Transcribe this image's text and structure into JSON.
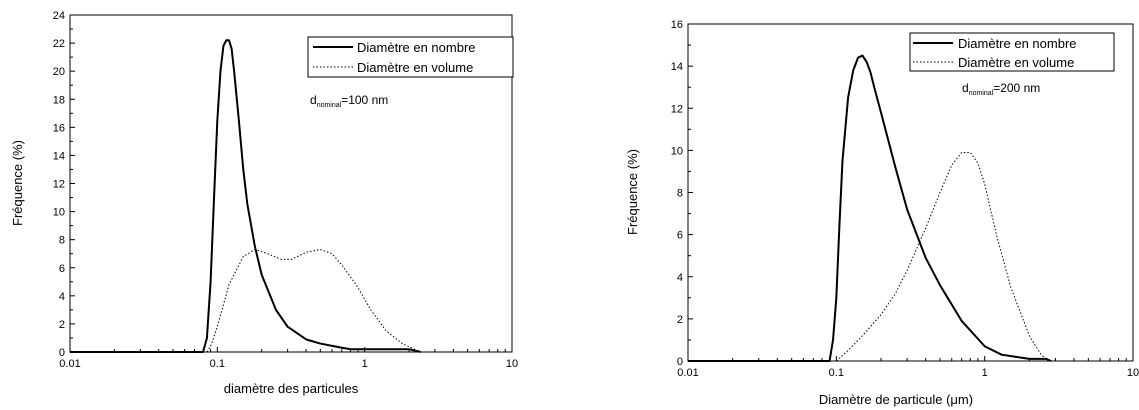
{
  "chart_data": [
    {
      "type": "line",
      "xscale": "log",
      "xlim": [
        0.01,
        10
      ],
      "ylim": [
        0,
        24
      ],
      "xticks": [
        "0.01",
        "0.1",
        "1",
        "10"
      ],
      "yticks": [
        "0",
        "2",
        "4",
        "6",
        "8",
        "10",
        "12",
        "14",
        "16",
        "18",
        "20",
        "22",
        "24"
      ],
      "xlabel": "diamètre des particules",
      "ylabel": "Fréquence (%)",
      "legend_position": "top-right",
      "annotation": {
        "prefix": "d",
        "subscript": "nominal",
        "suffix": "=100 nm"
      },
      "series": [
        {
          "name": "Diamètre en nombre",
          "style": "solid",
          "x": [
            0.01,
            0.08,
            0.085,
            0.09,
            0.095,
            0.1,
            0.105,
            0.11,
            0.115,
            0.12,
            0.125,
            0.13,
            0.14,
            0.15,
            0.16,
            0.18,
            0.2,
            0.25,
            0.3,
            0.4,
            0.5,
            0.7,
            0.8,
            1.0,
            1.5,
            2.0,
            2.4
          ],
          "y": [
            0,
            0,
            1.0,
            5.0,
            11.0,
            16.5,
            20.0,
            21.8,
            22.2,
            22.2,
            21.6,
            20.0,
            16.5,
            13.0,
            10.5,
            7.5,
            5.5,
            3.0,
            1.8,
            0.9,
            0.6,
            0.3,
            0.2,
            0.2,
            0.2,
            0.2,
            0
          ]
        },
        {
          "name": "Diamètre en volume",
          "style": "dotted",
          "x": [
            0.085,
            0.09,
            0.1,
            0.12,
            0.15,
            0.18,
            0.22,
            0.27,
            0.32,
            0.4,
            0.5,
            0.6,
            0.7,
            0.9,
            1.1,
            1.4,
            1.8,
            2.4
          ],
          "y": [
            0,
            0.4,
            1.8,
            4.8,
            6.8,
            7.3,
            7.0,
            6.6,
            6.6,
            7.1,
            7.3,
            7.0,
            6.2,
            4.6,
            3.0,
            1.5,
            0.6,
            0
          ]
        }
      ]
    },
    {
      "type": "line",
      "xscale": "log",
      "xlim": [
        0.01,
        10
      ],
      "ylim": [
        0,
        16
      ],
      "xticks": [
        "0.01",
        "0.1",
        "1",
        "10"
      ],
      "yticks": [
        "0",
        "2",
        "4",
        "6",
        "8",
        "10",
        "12",
        "14",
        "16"
      ],
      "xlabel": "Diamètre de particule (",
      "xlabel_symbol": "μ",
      "xlabel_suffix": "m)",
      "ylabel": "Fréquence (%)",
      "legend_position": "top-right",
      "annotation": {
        "prefix": "d",
        "subscript": "nominal",
        "suffix": "=200 nm"
      },
      "series": [
        {
          "name": "Diamètre en nombre",
          "style": "solid",
          "x": [
            0.01,
            0.09,
            0.095,
            0.1,
            0.105,
            0.11,
            0.12,
            0.13,
            0.14,
            0.15,
            0.16,
            0.17,
            0.18,
            0.2,
            0.25,
            0.3,
            0.4,
            0.5,
            0.7,
            1.0,
            1.3,
            2.0,
            2.6,
            2.8
          ],
          "y": [
            0,
            0,
            1.0,
            3.0,
            6.5,
            9.5,
            12.5,
            13.8,
            14.4,
            14.5,
            14.2,
            13.7,
            13.0,
            11.8,
            9.2,
            7.2,
            4.9,
            3.6,
            1.9,
            0.7,
            0.3,
            0.1,
            0.1,
            0
          ]
        },
        {
          "name": "Diamètre en volume",
          "style": "dotted",
          "x": [
            0.1,
            0.12,
            0.15,
            0.2,
            0.25,
            0.3,
            0.4,
            0.5,
            0.6,
            0.7,
            0.8,
            0.9,
            1.0,
            1.2,
            1.5,
            2.0,
            2.4,
            2.7
          ],
          "y": [
            0,
            0.5,
            1.2,
            2.2,
            3.2,
            4.3,
            6.3,
            8.0,
            9.3,
            9.9,
            9.9,
            9.4,
            8.4,
            6.0,
            3.5,
            1.2,
            0.3,
            0
          ]
        }
      ]
    }
  ]
}
